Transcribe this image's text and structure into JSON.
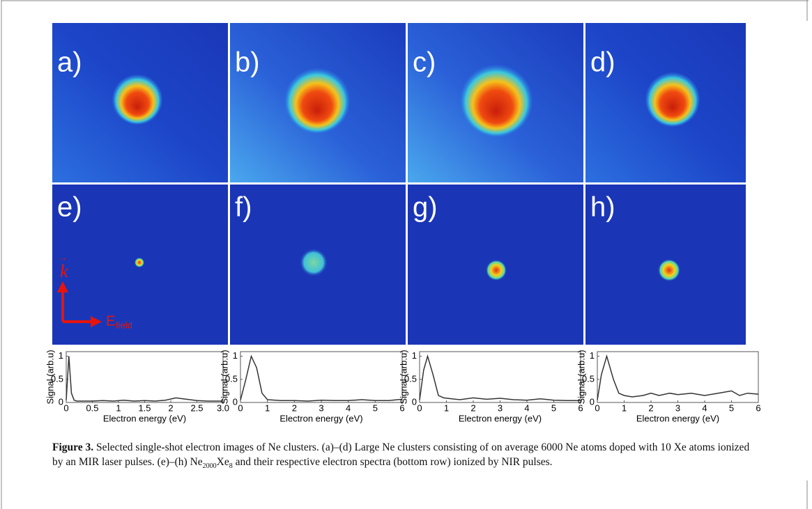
{
  "panels": [
    {
      "label": "a)"
    },
    {
      "label": "b)"
    },
    {
      "label": "c)"
    },
    {
      "label": "d)"
    },
    {
      "label": "e)"
    },
    {
      "label": "f)"
    },
    {
      "label": "g)"
    },
    {
      "label": "h)"
    }
  ],
  "annotation": {
    "k": "k",
    "e": "E",
    "sub": "field"
  },
  "chart_data": [
    {
      "type": "line",
      "xlabel": "Electron energy (eV)",
      "ylabel": "Signal (arb.u)",
      "color": "#333333",
      "x": [
        0,
        0.05,
        0.1,
        0.15,
        0.2,
        0.3,
        0.5,
        0.7,
        0.9,
        1.1,
        1.3,
        1.5,
        1.7,
        1.9,
        2.1,
        2.3,
        2.5,
        2.7,
        2.9,
        3.0
      ],
      "values": [
        0.05,
        1,
        0.2,
        0.05,
        0.03,
        0.03,
        0.03,
        0.04,
        0.03,
        0.05,
        0.03,
        0.04,
        0.03,
        0.05,
        0.1,
        0.07,
        0.04,
        0.03,
        0.03,
        0.03
      ],
      "xlim": [
        0,
        3
      ],
      "ylim": [
        0,
        1.1
      ],
      "xticks": [
        0,
        0.5,
        1,
        1.5,
        2,
        2.5,
        {
          "value": 3,
          "label": "3.0"
        }
      ],
      "yticks": [
        0,
        0.5,
        1
      ]
    },
    {
      "type": "line",
      "xlabel": "Electron energy (eV)",
      "ylabel": "Signal (arb.u)",
      "color": "#333333",
      "x": [
        0,
        0.2,
        0.4,
        0.6,
        0.8,
        1,
        1.5,
        2,
        2.5,
        3,
        3.5,
        4,
        4.5,
        5,
        5.5,
        6
      ],
      "values": [
        0.05,
        0.5,
        1,
        0.75,
        0.2,
        0.06,
        0.04,
        0.04,
        0.03,
        0.05,
        0.04,
        0.04,
        0.06,
        0.04,
        0.04,
        0.07
      ],
      "xlim": [
        0,
        6
      ],
      "ylim": [
        0,
        1.1
      ],
      "xticks": [
        0,
        1,
        2,
        3,
        4,
        5,
        6
      ],
      "yticks": [
        0,
        0.5,
        1
      ]
    },
    {
      "type": "line",
      "xlabel": "Electron energy (eV)",
      "ylabel": "Signal (arb.u)",
      "color": "#333333",
      "x": [
        0,
        0.15,
        0.3,
        0.5,
        0.7,
        0.9,
        1.2,
        1.5,
        2,
        2.5,
        3,
        3.5,
        4,
        4.5,
        5,
        5.5,
        6
      ],
      "values": [
        0.05,
        0.7,
        1,
        0.6,
        0.15,
        0.1,
        0.08,
        0.06,
        0.1,
        0.07,
        0.09,
        0.06,
        0.05,
        0.08,
        0.05,
        0.04,
        0.04
      ],
      "xlim": [
        0,
        6
      ],
      "ylim": [
        0,
        1.1
      ],
      "xticks": [
        0,
        1,
        2,
        3,
        4,
        5,
        6
      ],
      "yticks": [
        0,
        0.5,
        1
      ]
    },
    {
      "type": "line",
      "xlabel": "Electron energy (eV)",
      "ylabel": "Signal (arb.u)",
      "color": "#333333",
      "x": [
        0,
        0.15,
        0.35,
        0.6,
        0.8,
        1,
        1.3,
        1.7,
        2,
        2.3,
        2.7,
        3,
        3.5,
        4,
        4.5,
        5,
        5.3,
        5.6,
        6
      ],
      "values": [
        0.05,
        0.6,
        1,
        0.5,
        0.2,
        0.15,
        0.12,
        0.15,
        0.2,
        0.15,
        0.2,
        0.17,
        0.2,
        0.15,
        0.2,
        0.25,
        0.15,
        0.2,
        0.18
      ],
      "xlim": [
        0,
        6
      ],
      "ylim": [
        0,
        1.1
      ],
      "xticks": [
        0,
        1,
        2,
        3,
        4,
        5,
        6
      ],
      "yticks": [
        0,
        0.5,
        1
      ]
    }
  ],
  "caption": {
    "label": "Figure 3.",
    "parts": [
      "  Selected single-shot electron images of Ne clusters. (a)–(d) Large Ne clusters consisting of on average 6000 Ne atoms doped with 10 Xe atoms ionized by an MIR laser pulses. (e)–(h) Ne",
      "2000",
      "Xe",
      "8",
      " and their respective electron spectra (bottom row) ionized by NIR pulses."
    ]
  }
}
